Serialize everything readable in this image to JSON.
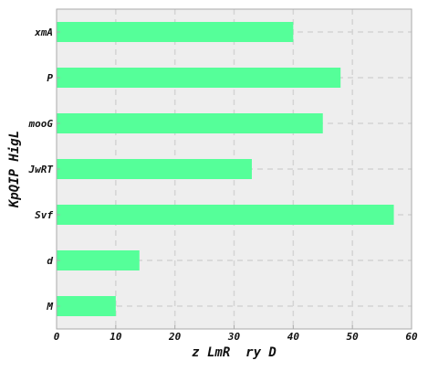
{
  "chart_data": {
    "type": "bar",
    "orientation": "horizontal",
    "categories": [
      "xmA",
      "P",
      "mooG",
      "JwRT",
      "Svf",
      "d",
      "M"
    ],
    "values": [
      40,
      48,
      45,
      33,
      57,
      14,
      10
    ],
    "title": "",
    "xlabel": "z LmR  ry D",
    "ylabel": "KpQIP HigL",
    "xlim": [
      0,
      60
    ],
    "xticks": [
      0,
      10,
      20,
      30,
      40,
      50,
      60
    ],
    "grid": true,
    "legend": "none",
    "colors": {
      "bar": "#55ff99",
      "plot_background": "#eeeeee",
      "grid": "#d4d4d4",
      "axis": "#aaaaaa"
    }
  }
}
